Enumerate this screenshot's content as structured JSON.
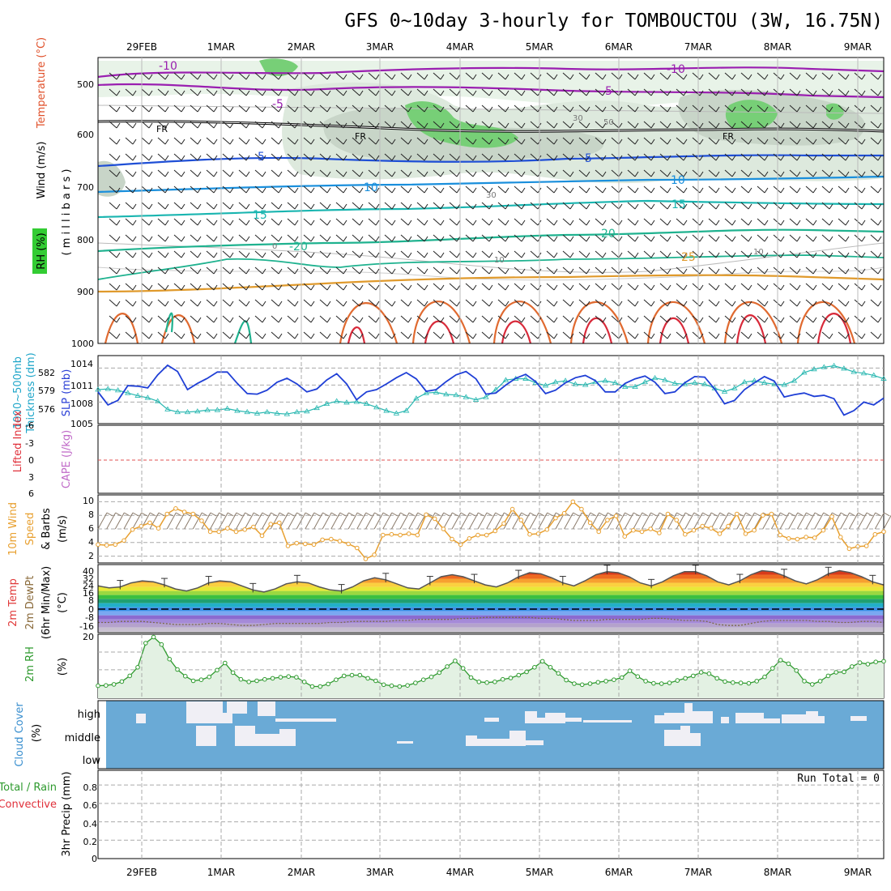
{
  "title": "GFS 0~10day 3-hourly for TOMBOUCTOU (3W, 16.75N)",
  "dates": [
    "29FEB",
    "1MAR",
    "2MAR",
    "3MAR",
    "4MAR",
    "5MAR",
    "6MAR",
    "7MAR",
    "8MAR",
    "9MAR"
  ],
  "panel_labels": {
    "upper_wind": "Wind (m/s)",
    "upper_temp": "Temperature (°C)",
    "upper_rh": "RH (%)",
    "upper_units": "( m i l l i b a r s )",
    "slp_thick_a": "1000~500mb",
    "slp_thick_b": "Thickness (dm)",
    "slp": "SLP (mb)",
    "li": "Lifted Index",
    "cape": "CAPE (J/kg)",
    "wind10_a": "10m Wind",
    "wind10_b": "Speed",
    "wind10_c": "& Barbs",
    "wind10_units": "(m/s)",
    "temp_a": "2m Temp",
    "temp_b": "2m DewPt",
    "temp_c": "(6hr Min/Max)",
    "temp_units": "(°C)",
    "rh2m": "2m RH",
    "rh2m_units": "(%)",
    "cloud_a": "Cloud Cover",
    "cloud_units": "(%)",
    "precip_a": "Total / Rain",
    "precip_b": "Convective",
    "precip_c": "3hr Precip (mm)"
  },
  "pressure_ticks": [
    "500",
    "600",
    "700",
    "800",
    "900",
    "1000"
  ],
  "cloud_ticks": [
    "high",
    "middle",
    "low"
  ],
  "run_total": "Run Total = 0",
  "upper_contour_labels": {
    "temps": [
      "-10",
      "-5",
      "5",
      "10",
      "15",
      "20",
      "25",
      "-10",
      "-5",
      "5",
      "10",
      "15",
      "20",
      "-20"
    ],
    "freezing": "FR",
    "rh": [
      "30",
      "50",
      "30",
      "10",
      "0",
      "10"
    ]
  },
  "colors": {
    "slp": "#1f3fd6",
    "thickness": "#27b7b0",
    "wind10": "#e8a030",
    "rh2m": "#2e9a2e",
    "cloud": "#6aaad6",
    "rh_shade": "#bfe3bf",
    "rh_shade_dark": "#cfd9cf",
    "rh_saturated": "#66cc66"
  },
  "chart_data": [
    {
      "type": "line",
      "name": "slp_thickness",
      "ylabel_left": "1000~500mb Thickness (dm)",
      "ylabel_right": "SLP (mb)",
      "y_ticks_thickness": [
        "582",
        "579",
        "576"
      ],
      "y_ticks_slp": [
        "1014",
        "1011",
        "1008",
        "1005"
      ],
      "ylim_slp": [
        1004.2,
        1016.2
      ],
      "ylim_thickness": [
        574.0,
        584.0
      ],
      "series": [
        {
          "name": "SLP (mb)",
          "values": [
            1009.8,
            1007.5,
            1008.3,
            1010.9,
            1010.8,
            1010.5,
            1012.8,
            1014.5,
            1013.4,
            1010.2,
            1011.3,
            1012.2,
            1013.3,
            1013.3,
            1011.3,
            1009.5,
            1009.4,
            1010.1,
            1011.5,
            1012.2,
            1011.2,
            1009.8,
            1010.3,
            1011.9,
            1013.0,
            1011.2,
            1008.4,
            1009.8,
            1010.2,
            1011.2,
            1012.3,
            1013.2,
            1012.1,
            1009.9,
            1010.2,
            1011.6,
            1012.8,
            1013.4,
            1012.1,
            1009.4,
            1009.6,
            1011.0,
            1012.2,
            1012.9,
            1011.6,
            1009.5,
            1010.1,
            1011.4,
            1012.3,
            1012.7,
            1011.8,
            1009.8,
            1009.8,
            1011.3,
            1012.1,
            1012.6,
            1011.5,
            1009.5,
            1009.8,
            1011.4,
            1012.5,
            1012.4,
            1010.3,
            1007.7,
            1008.3,
            1010.2,
            1011.4,
            1012.5,
            1011.7,
            1008.9,
            1009.3,
            1009.6,
            1009.0,
            1009.2,
            1008.6,
            1005.7,
            1006.5,
            1008.0,
            1007.5,
            1008.7
          ]
        },
        {
          "name": "1000~500mb Thickness (dm)",
          "values": [
            579.0,
            579.1,
            578.9,
            578.5,
            578.1,
            577.8,
            577.3,
            576.1,
            575.7,
            575.7,
            575.8,
            576.0,
            576.0,
            576.2,
            575.9,
            575.7,
            575.5,
            575.7,
            575.5,
            575.4,
            575.7,
            575.8,
            576.3,
            576.9,
            577.3,
            577.1,
            577.2,
            576.9,
            576.4,
            575.9,
            575.5,
            575.9,
            577.7,
            578.5,
            578.6,
            578.3,
            578.2,
            577.9,
            577.5,
            577.9,
            579.0,
            580.4,
            580.6,
            580.6,
            580.0,
            579.6,
            580.1,
            580.3,
            579.8,
            579.7,
            580.1,
            580.3,
            580.0,
            579.4,
            579.4,
            580.1,
            580.7,
            580.4,
            579.9,
            579.8,
            580.0,
            579.8,
            579.2,
            578.7,
            579.2,
            580.1,
            580.3,
            580.0,
            579.8,
            579.7,
            580.3,
            581.5,
            582.0,
            582.3,
            582.5,
            582.1,
            581.6,
            581.4,
            581.1,
            580.6
          ]
        }
      ]
    },
    {
      "type": "line",
      "name": "lifted_index",
      "ylabel": "Lifted Index",
      "y_ticks": [
        "-6",
        "-3",
        "0",
        "3",
        "6"
      ],
      "ylim": [
        -6,
        6
      ],
      "series": []
    },
    {
      "type": "line",
      "name": "wind10m",
      "ylabel": "10m Wind Speed & Barbs (m/s)",
      "y_ticks": [
        "10",
        "8",
        "6",
        "4",
        "2"
      ],
      "ylim": [
        1,
        11
      ],
      "values": [
        3.7,
        3.6,
        3.7,
        4.3,
        5.9,
        6.4,
        6.9,
        6.1,
        8.2,
        9.0,
        8.5,
        8.2,
        7.2,
        5.6,
        5.6,
        6.1,
        5.6,
        5.9,
        6.3,
        5.0,
        6.7,
        6.9,
        3.5,
        3.9,
        3.8,
        3.7,
        4.4,
        4.5,
        4.2,
        3.8,
        3.2,
        1.6,
        2.2,
        5.1,
        5.2,
        5.1,
        5.3,
        5.1,
        8.1,
        7.5,
        6.0,
        4.5,
        3.7,
        4.6,
        5.1,
        5.1,
        5.7,
        6.8,
        8.9,
        7.3,
        5.2,
        5.3,
        5.9,
        7.6,
        8.3,
        10.0,
        8.9,
        6.9,
        5.6,
        7.3,
        7.9,
        4.9,
        5.8,
        5.6,
        6.0,
        5.4,
        8.2,
        7.3,
        5.2,
        5.8,
        6.4,
        6.1,
        5.3,
        6.4,
        8.2,
        5.3,
        5.8,
        8.0,
        8.2,
        5.1,
        4.6,
        4.5,
        4.8,
        4.7,
        5.8,
        7.8,
        4.8,
        3.1,
        3.4,
        3.5,
        5.2,
        5.6
      ]
    },
    {
      "type": "area",
      "name": "temp2m",
      "ylabel": "2m Temp / 2m DewPt (6hr Min/Max) (°C)",
      "y_ticks": [
        "40",
        "32",
        "24",
        "16",
        "8",
        "0",
        "-8",
        "-16"
      ],
      "ylim": [
        -21,
        46
      ],
      "series": [
        {
          "name": "2m Temp",
          "values": [
            25,
            23,
            24,
            28,
            30,
            29,
            26,
            22,
            20,
            23,
            28,
            30,
            29,
            25,
            21,
            19,
            22,
            27,
            29,
            28,
            24,
            21,
            20,
            24,
            30,
            33,
            31,
            27,
            23,
            22,
            28,
            34,
            36,
            34,
            30,
            26,
            24,
            28,
            34,
            38,
            37,
            33,
            28,
            25,
            30,
            36,
            39,
            38,
            34,
            28,
            25,
            29,
            35,
            39,
            39,
            35,
            29,
            26,
            30,
            36,
            40,
            39,
            35,
            30,
            27,
            31,
            37,
            40,
            38,
            34,
            29,
            26
          ]
        },
        {
          "name": "2m DewPt",
          "values": [
            -11,
            -11,
            -10,
            -10,
            -10,
            -11,
            -12,
            -13,
            -13,
            -13,
            -12,
            -12,
            -13,
            -14,
            -14,
            -13,
            -12,
            -12,
            -12,
            -12,
            -12,
            -11,
            -11,
            -10,
            -10,
            -10,
            -10,
            -9,
            -9,
            -8,
            -8,
            -8,
            -8,
            -7,
            -7,
            -6,
            -6,
            -6,
            -6,
            -6,
            -7,
            -7,
            -8,
            -9,
            -9,
            -9,
            -8,
            -8,
            -8,
            -8,
            -7,
            -7,
            -8,
            -9,
            -9,
            -10,
            -13,
            -14,
            -14,
            -12,
            -10,
            -9,
            -9,
            -9,
            -9,
            -10,
            -10,
            -11,
            -11,
            -10,
            -10,
            -11
          ]
        }
      ]
    },
    {
      "type": "area",
      "name": "rh2m",
      "ylabel": "2m RH (%)",
      "y_ticks": [
        "20"
      ],
      "ylim": [
        2,
        20
      ],
      "values": [
        5.5,
        5.6,
        5.9,
        6.7,
        8.3,
        10.7,
        17.5,
        19.2,
        17.1,
        13.0,
        10.1,
        8.2,
        6.9,
        7.2,
        8.0,
        9.9,
        11.9,
        9.2,
        7.3,
        6.6,
        6.9,
        7.3,
        7.6,
        7.9,
        8.1,
        7.9,
        6.6,
        5.3,
        5.3,
        6.0,
        7.2,
        8.3,
        8.5,
        8.5,
        7.6,
        6.9,
        5.8,
        5.5,
        5.3,
        5.6,
        6.3,
        7.2,
        8.0,
        9.2,
        10.9,
        12.5,
        10.4,
        7.8,
        6.6,
        6.4,
        6.6,
        7.3,
        7.7,
        8.5,
        9.4,
        10.7,
        12.4,
        10.7,
        9.0,
        7.1,
        6.1,
        5.8,
        6.1,
        6.5,
        6.8,
        7.2,
        7.8,
        9.7,
        8.1,
        6.8,
        6.2,
        6.1,
        6.3,
        7.0,
        7.6,
        8.3,
        9.3,
        8.9,
        7.6,
        6.7,
        6.4,
        6.3,
        6.2,
        6.8,
        8.0,
        10.4,
        12.7,
        11.7,
        9.8,
        6.8,
        5.9,
        6.8,
        8.3,
        9.3,
        9.4,
        10.9,
        12.0,
        11.6,
        12.2,
        12.4
      ]
    },
    {
      "type": "bar",
      "name": "cloud_cover",
      "ylabel": "Cloud Cover (%)",
      "categories": [
        "high",
        "middle",
        "low"
      ]
    },
    {
      "type": "bar",
      "name": "precip3hr",
      "ylabel": "3hr Precip (mm)",
      "y_ticks": [
        "0.8",
        "0.6",
        "0.4",
        "0.2",
        "0"
      ],
      "ylim": [
        0,
        0.96
      ],
      "values": [],
      "annotation": "Run Total = 0"
    }
  ]
}
